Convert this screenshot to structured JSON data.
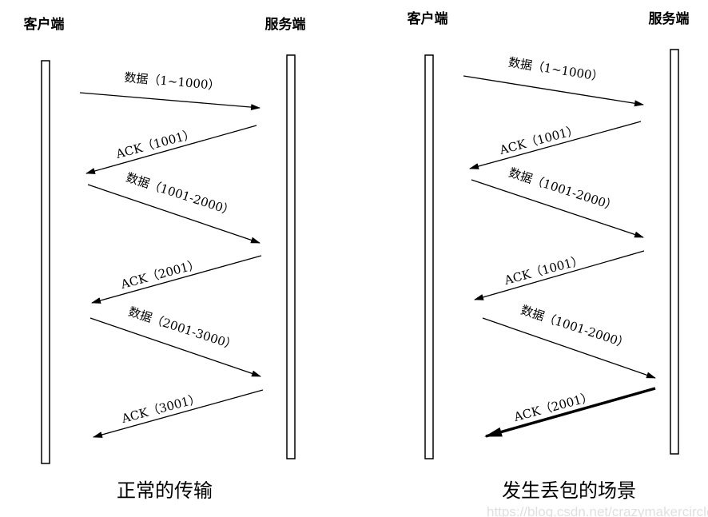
{
  "normal": {
    "client_label": "客户端",
    "server_label": "服务端",
    "caption": "正常的传输",
    "messages": [
      {
        "direction": "client-to-server",
        "label": "数据（1~1000）"
      },
      {
        "direction": "server-to-client",
        "label": "ACK（1001）"
      },
      {
        "direction": "client-to-server",
        "label": "数据（1001-2000）"
      },
      {
        "direction": "server-to-client",
        "label": "ACK（2001）"
      },
      {
        "direction": "client-to-server",
        "label": "数据（2001-3000）"
      },
      {
        "direction": "server-to-client",
        "label": "ACK（3001）"
      }
    ]
  },
  "loss": {
    "client_label": "客户端",
    "server_label": "服务端",
    "caption": "发生丢包的场景",
    "messages": [
      {
        "direction": "client-to-server",
        "label": "数据（1~1000）"
      },
      {
        "direction": "server-to-client",
        "label": "ACK（1001）"
      },
      {
        "direction": "client-to-server",
        "label": "数据（1001-2000）"
      },
      {
        "direction": "server-to-client",
        "label": "ACK（1001）"
      },
      {
        "direction": "client-to-server",
        "label": "数据（1001-2000）"
      },
      {
        "direction": "server-to-client",
        "label": "ACK（2001）",
        "emphasis": "bold"
      }
    ]
  },
  "watermark": "https://blog.csdn.net/crazymakercircle"
}
